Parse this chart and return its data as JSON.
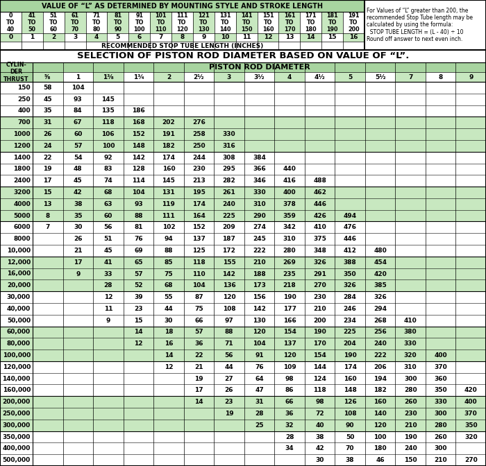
{
  "top_title": "VALUE OF “L” AS DETERMINED BY MOUNTING STYLE AND STROKE LENGTH",
  "top_ranges": [
    "0\nTO\n40",
    "41\nTO\n50",
    "51\nTO\n60",
    "61\nTO\n70",
    "71\nTO\n80",
    "81\nTO\n90",
    "91\nTO\n100",
    "101\nTO\n110",
    "111\nTO\n120",
    "121\nTO\n130",
    "131\nTO\n140",
    "141\nTO\n150",
    "151\nTO\n160",
    "161\nTO\n170",
    "171\nTO\n180",
    "181\nTO\n190",
    "191\nTO\n200"
  ],
  "top_numbers": [
    "0",
    "1",
    "2",
    "3",
    "4",
    "5",
    "6",
    "7",
    "8",
    "9",
    "10",
    "11",
    "12",
    "13",
    "14",
    "15",
    "16"
  ],
  "top_note_lines": [
    "For Values of “L” greater than 200, the",
    "recommended Stop Tube length may be",
    "calculated by using the formula:",
    "  STOP TUBE LENGTH = (L - 40) ÷ 10",
    "Round off answer to next even inch."
  ],
  "recommended_label": "RECOMMENDED STOP TUBE LENGTH (INCHES)",
  "main_title": "SELECTION OF PISTON ROD DIAMETER BASED ON VALUE OF “L”.",
  "col_header_left": "CYLIN-\nDER\nTHRUST",
  "col_header_center": "PISTON ROD DIAMETER",
  "rod_diameters": [
    "5/8",
    "1",
    "1 3/8",
    "1 3/4",
    "2",
    "2 1/2",
    "3",
    "3 1/2",
    "4",
    "4 1/2",
    "5",
    "5 1/2",
    "7",
    "8",
    "9"
  ],
  "thrust_values": [
    "150",
    "250",
    "400",
    "700",
    "1000",
    "1200",
    "1400",
    "1800",
    "2400",
    "3200",
    "4000",
    "5000",
    "6000",
    "8000",
    "10,000",
    "12,000",
    "16,000",
    "20,000",
    "30,000",
    "40,000",
    "50,000",
    "60,000",
    "80,000",
    "100,000",
    "120,000",
    "140,000",
    "160,000",
    "200,000",
    "250,000",
    "300,000",
    "350,000",
    "400,000",
    "500,000"
  ],
  "table_data": [
    [
      "58",
      "104",
      "",
      "",
      "",
      "",
      "",
      "",
      "",
      "",
      "",
      "",
      "",
      "",
      ""
    ],
    [
      "45",
      "93",
      "145",
      "",
      "",
      "",
      "",
      "",
      "",
      "",
      "",
      "",
      "",
      "",
      ""
    ],
    [
      "35",
      "84",
      "135",
      "186",
      "",
      "",
      "",
      "",
      "",
      "",
      "",
      "",
      "",
      "",
      ""
    ],
    [
      "31",
      "67",
      "118",
      "168",
      "202",
      "276",
      "",
      "",
      "",
      "",
      "",
      "",
      "",
      "",
      ""
    ],
    [
      "26",
      "60",
      "106",
      "152",
      "191",
      "258",
      "330",
      "",
      "",
      "",
      "",
      "",
      "",
      "",
      ""
    ],
    [
      "24",
      "57",
      "100",
      "148",
      "182",
      "250",
      "316",
      "",
      "",
      "",
      "",
      "",
      "",
      "",
      ""
    ],
    [
      "22",
      "54",
      "92",
      "142",
      "174",
      "244",
      "308",
      "384",
      "",
      "",
      "",
      "",
      "",
      "",
      ""
    ],
    [
      "19",
      "48",
      "83",
      "128",
      "160",
      "230",
      "295",
      "366",
      "440",
      "",
      "",
      "",
      "",
      "",
      ""
    ],
    [
      "17",
      "45",
      "74",
      "114",
      "145",
      "213",
      "282",
      "346",
      "416",
      "488",
      "",
      "",
      "",
      "",
      ""
    ],
    [
      "15",
      "42",
      "68",
      "104",
      "131",
      "195",
      "261",
      "330",
      "400",
      "462",
      "",
      "",
      "",
      "",
      ""
    ],
    [
      "13",
      "38",
      "63",
      "93",
      "119",
      "174",
      "240",
      "310",
      "378",
      "446",
      "",
      "",
      "",
      "",
      ""
    ],
    [
      "8",
      "35",
      "60",
      "88",
      "111",
      "164",
      "225",
      "290",
      "359",
      "426",
      "494",
      "",
      "",
      "",
      ""
    ],
    [
      "7",
      "30",
      "56",
      "81",
      "102",
      "152",
      "209",
      "274",
      "342",
      "410",
      "476",
      "",
      "",
      "",
      ""
    ],
    [
      "",
      "26",
      "51",
      "76",
      "94",
      "137",
      "187",
      "245",
      "310",
      "375",
      "446",
      "",
      "",
      "",
      ""
    ],
    [
      "",
      "21",
      "45",
      "69",
      "88",
      "125",
      "172",
      "222",
      "280",
      "348",
      "412",
      "480",
      "",
      "",
      ""
    ],
    [
      "",
      "17",
      "41",
      "65",
      "85",
      "118",
      "155",
      "210",
      "269",
      "326",
      "388",
      "454",
      "",
      "",
      ""
    ],
    [
      "",
      "9",
      "33",
      "57",
      "75",
      "110",
      "142",
      "188",
      "235",
      "291",
      "350",
      "420",
      "",
      "",
      ""
    ],
    [
      "",
      "",
      "28",
      "52",
      "68",
      "104",
      "136",
      "173",
      "218",
      "270",
      "326",
      "385",
      "",
      "",
      ""
    ],
    [
      "",
      "",
      "12",
      "39",
      "55",
      "87",
      "120",
      "156",
      "190",
      "230",
      "284",
      "326",
      "",
      "",
      ""
    ],
    [
      "",
      "",
      "11",
      "23",
      "44",
      "75",
      "108",
      "142",
      "177",
      "210",
      "246",
      "294",
      "",
      "",
      ""
    ],
    [
      "",
      "",
      "9",
      "15",
      "30",
      "66",
      "97",
      "130",
      "166",
      "200",
      "234",
      "268",
      "410",
      "",
      ""
    ],
    [
      "",
      "",
      "",
      "14",
      "18",
      "57",
      "88",
      "120",
      "154",
      "190",
      "225",
      "256",
      "380",
      "",
      ""
    ],
    [
      "",
      "",
      "",
      "12",
      "16",
      "36",
      "71",
      "104",
      "137",
      "170",
      "204",
      "240",
      "330",
      "",
      ""
    ],
    [
      "",
      "",
      "",
      "",
      "14",
      "22",
      "56",
      "91",
      "120",
      "154",
      "190",
      "222",
      "320",
      "400",
      ""
    ],
    [
      "",
      "",
      "",
      "",
      "12",
      "21",
      "44",
      "76",
      "109",
      "144",
      "174",
      "206",
      "310",
      "370",
      ""
    ],
    [
      "",
      "",
      "",
      "",
      "",
      "19",
      "27",
      "64",
      "98",
      "124",
      "160",
      "194",
      "300",
      "360",
      ""
    ],
    [
      "",
      "",
      "",
      "",
      "",
      "17",
      "26",
      "47",
      "86",
      "118",
      "148",
      "182",
      "280",
      "350",
      "420"
    ],
    [
      "",
      "",
      "",
      "",
      "",
      "14",
      "23",
      "31",
      "66",
      "98",
      "126",
      "160",
      "260",
      "330",
      "400"
    ],
    [
      "",
      "",
      "",
      "",
      "",
      "",
      "19",
      "28",
      "36",
      "72",
      "108",
      "140",
      "230",
      "300",
      "370"
    ],
    [
      "",
      "",
      "",
      "",
      "",
      "",
      "",
      "25",
      "32",
      "40",
      "90",
      "120",
      "210",
      "280",
      "350"
    ],
    [
      "",
      "",
      "",
      "",
      "",
      "",
      "",
      "",
      "28",
      "38",
      "50",
      "100",
      "190",
      "260",
      "320"
    ],
    [
      "",
      "",
      "",
      "",
      "",
      "",
      "",
      "",
      "34",
      "42",
      "70",
      "180",
      "240",
      "300",
      ""
    ],
    [
      "",
      "",
      "",
      "",
      "",
      "",
      "",
      "",
      "",
      "30",
      "38",
      "46",
      "150",
      "210",
      "270"
    ]
  ],
  "bg_green": "#c8e8c0",
  "bg_white": "#ffffff",
  "header_green": "#a8d4a0",
  "border_color": "#000000"
}
